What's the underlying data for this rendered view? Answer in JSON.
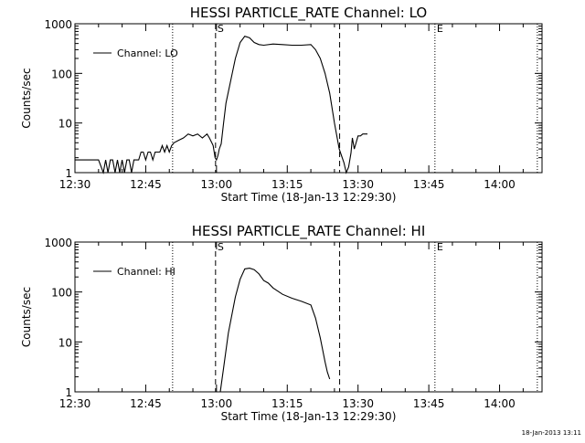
{
  "chart_data": [
    {
      "type": "line",
      "title": "HESSI PARTICLE_RATE Channel: LO",
      "xlabel": "Start Time (18-Jan-13 12:29:30)",
      "ylabel": "Counts/sec",
      "y_scale": "log",
      "ylim": [
        1,
        1000
      ],
      "xlim_minutes": [
        0,
        99
      ],
      "x_ticks": [
        {
          "label": "12:30",
          "minutes": 0
        },
        {
          "label": "12:45",
          "minutes": 15
        },
        {
          "label": "13:00",
          "minutes": 30
        },
        {
          "label": "13:15",
          "minutes": 45
        },
        {
          "label": "13:30",
          "minutes": 60
        },
        {
          "label": "13:45",
          "minutes": 75
        },
        {
          "label": "14:00",
          "minutes": 90
        }
      ],
      "y_ticks": [
        {
          "label": "1",
          "value": 1
        },
        {
          "label": "10",
          "value": 10
        },
        {
          "label": "100",
          "value": 100
        },
        {
          "label": "1000",
          "value": 1000
        }
      ],
      "legend": "Channel: LO",
      "legend_position": "top-left",
      "markers": [
        {
          "label": "S",
          "minutes": 29.8,
          "style": "dashed"
        },
        {
          "label": "",
          "minutes": 56.1,
          "style": "dashed"
        },
        {
          "label": "",
          "minutes": 20.7,
          "style": "dotted"
        },
        {
          "label": "E",
          "minutes": 76.3,
          "style": "dotted"
        },
        {
          "label": "",
          "minutes": 98.0,
          "style": "dotted"
        }
      ],
      "series": [
        {
          "name": "Channel: LO",
          "x_minutes": [
            0,
            5,
            6,
            6.5,
            7,
            7.5,
            8,
            8.5,
            9,
            9.5,
            10,
            10.5,
            11,
            11.5,
            12,
            12.5,
            13,
            13.5,
            14,
            14.5,
            15,
            15.5,
            16,
            16.5,
            17,
            17.5,
            18,
            18.5,
            19,
            19.5,
            20,
            20.5,
            21,
            22,
            23,
            24,
            25,
            26,
            27,
            28,
            28.5,
            29,
            29.3,
            29.7,
            30,
            30.3,
            30.6,
            31,
            31.5,
            32,
            33,
            34,
            35,
            36,
            37,
            38,
            39,
            40,
            42,
            44,
            46,
            48,
            50,
            51,
            52,
            53,
            54,
            55,
            56,
            57,
            57.5,
            58,
            58.5,
            58.8,
            59.2,
            60,
            60.5,
            61,
            62
          ],
          "values": [
            1.8,
            1.8,
            1,
            1.8,
            1,
            1.8,
            1.8,
            1,
            1.8,
            1,
            1.8,
            1,
            1.8,
            1.8,
            1,
            1.8,
            1.8,
            1.8,
            2.6,
            2.6,
            1.8,
            2.6,
            2.6,
            1.8,
            2.6,
            2.6,
            2.6,
            3.5,
            2.6,
            3.5,
            2.6,
            3.5,
            4,
            4.5,
            5,
            6,
            5.5,
            6,
            5,
            6,
            5,
            4,
            3.5,
            2,
            1.8,
            2.2,
            3,
            3.8,
            10,
            25,
            70,
            200,
            420,
            560,
            520,
            420,
            380,
            370,
            390,
            380,
            370,
            370,
            380,
            300,
            200,
            100,
            40,
            10,
            3,
            1.6,
            1,
            1.3,
            2.5,
            5,
            3,
            5.5,
            5.5,
            6,
            6
          ]
        }
      ]
    },
    {
      "type": "line",
      "title": "HESSI PARTICLE_RATE Channel: HI",
      "xlabel": "Start Time (18-Jan-13 12:29:30)",
      "ylabel": "Counts/sec",
      "y_scale": "log",
      "ylim": [
        1,
        1000
      ],
      "xlim_minutes": [
        0,
        99
      ],
      "x_ticks": [
        {
          "label": "12:30",
          "minutes": 0
        },
        {
          "label": "12:45",
          "minutes": 15
        },
        {
          "label": "13:00",
          "minutes": 30
        },
        {
          "label": "13:15",
          "minutes": 45
        },
        {
          "label": "13:30",
          "minutes": 60
        },
        {
          "label": "13:45",
          "minutes": 75
        },
        {
          "label": "14:00",
          "minutes": 90
        }
      ],
      "y_ticks": [
        {
          "label": "1",
          "value": 1
        },
        {
          "label": "10",
          "value": 10
        },
        {
          "label": "100",
          "value": 100
        },
        {
          "label": "1000",
          "value": 1000
        }
      ],
      "legend": "Channel: HI",
      "legend_position": "top-left",
      "markers": [
        {
          "label": "S",
          "minutes": 29.8,
          "style": "dashed"
        },
        {
          "label": "",
          "minutes": 56.1,
          "style": "dashed"
        },
        {
          "label": "",
          "minutes": 20.7,
          "style": "dotted"
        },
        {
          "label": "E",
          "minutes": 76.3,
          "style": "dotted"
        },
        {
          "label": "",
          "minutes": 98.0,
          "style": "dotted"
        }
      ],
      "series": [
        {
          "name": "Channel: HI",
          "x_minutes": [
            30.8,
            31.5,
            32.5,
            34,
            35,
            36,
            37,
            38,
            39,
            40,
            41,
            42,
            44,
            46,
            48,
            50,
            51,
            52,
            53,
            53.5,
            54
          ],
          "values": [
            1,
            3,
            15,
            80,
            180,
            290,
            300,
            280,
            230,
            170,
            150,
            120,
            90,
            75,
            65,
            55,
            30,
            12,
            4,
            2.5,
            1.8
          ]
        }
      ]
    }
  ],
  "footer": {
    "timestamp": "18-Jan-2013 13:11"
  }
}
